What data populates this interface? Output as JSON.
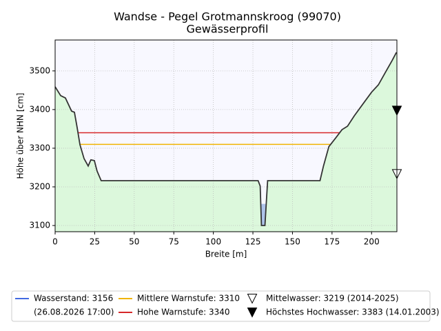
{
  "chart_data": {
    "type": "profile",
    "title": "Wandse - Pegel Grotmannskroog (99070)",
    "subtitle": "Gewässerprofil",
    "x_label": "Breite [m]",
    "y_label": "Höhe über NHN [cm]",
    "xlim": [
      0,
      216
    ],
    "ylim": [
      3084,
      3580
    ],
    "xticks": [
      0,
      25,
      50,
      75,
      100,
      125,
      150,
      175,
      200
    ],
    "yticks": [
      3100,
      3200,
      3300,
      3400,
      3500
    ],
    "grid": true,
    "background": "#f8f8ff",
    "terrain": {
      "color": "#333333",
      "fill": "#dcf8dc",
      "x": [
        0,
        3.5,
        6.5,
        10.4,
        12.2,
        13.9,
        15.7,
        18.3,
        20.9,
        22.6,
        24.8,
        26.5,
        29.1,
        128.3,
        129.6,
        130.4,
        132.6,
        134.3,
        167.4,
        169.6,
        173,
        177.4,
        181.3,
        184.8,
        189.1,
        194.8,
        200,
        204.3,
        208.7,
        213,
        215.7
      ],
      "values": [
        3459,
        3436,
        3430,
        3396,
        3393,
        3354,
        3309,
        3273,
        3254,
        3270,
        3268,
        3241,
        3216,
        3216,
        3202,
        3100,
        3100,
        3216,
        3216,
        3254,
        3304,
        3327,
        3348,
        3357,
        3384,
        3416,
        3445,
        3464,
        3496,
        3527,
        3548
      ]
    },
    "levels": [
      {
        "name": "Wasserstand: 3156",
        "note": "(26.08.2026 17:00)",
        "value": 3156,
        "color": "#4169e1",
        "fill": "#aec3ea",
        "style": "water"
      },
      {
        "name": "Mittlere Warnstufe: 3310",
        "value": 3310,
        "color": "#f0b400",
        "style": "line"
      },
      {
        "name": "Hohe Warnstufe: 3340",
        "value": 3340,
        "color": "#d62728",
        "style": "line"
      }
    ],
    "markers": [
      {
        "name": "Mittelwasser: 3219 (2014-2025)",
        "value": 3219,
        "filled": false
      },
      {
        "name": "Höchstes Hochwasser: 3383 (14.01.2003)",
        "value": 3383,
        "filled": true
      }
    ]
  }
}
